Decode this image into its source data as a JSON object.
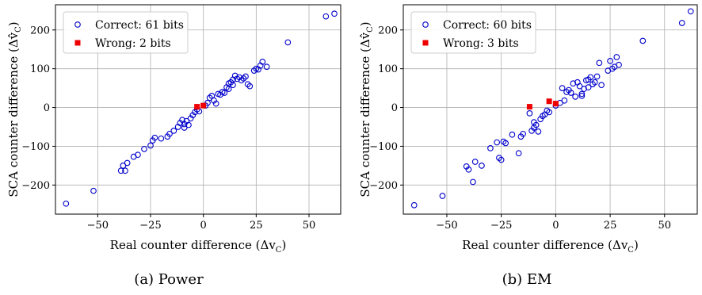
{
  "chart_data": [
    {
      "type": "scatter",
      "caption": "(a) Power",
      "xlabel": "Real counter difference (Δv",
      "xlabel_sub": "C",
      "xlabel_end": ")",
      "ylabel": "SCA counter difference (Δv̂",
      "ylabel_sub": "C",
      "ylabel_end": ")",
      "xlim": [
        -70,
        65
      ],
      "ylim": [
        -275,
        265
      ],
      "xticks": [
        -50,
        -25,
        0,
        25,
        50
      ],
      "xtick_labels": [
        "−50",
        "−25",
        "0",
        "25",
        "50"
      ],
      "yticks": [
        -200,
        -100,
        0,
        100,
        200
      ],
      "ytick_labels": [
        "−200",
        "−100",
        "0",
        "100",
        "200"
      ],
      "grid": true,
      "legend_position": "top-left",
      "series": [
        {
          "name": "Correct: 61 bits",
          "marker": "open-circle",
          "color": "#0000cc",
          "points": [
            [
              -65,
              -248
            ],
            [
              -52,
              -215
            ],
            [
              -39,
              -163
            ],
            [
              -38,
              -150
            ],
            [
              -37,
              -163
            ],
            [
              -36,
              -143
            ],
            [
              -33,
              -127
            ],
            [
              -31,
              -122
            ],
            [
              -28,
              -107
            ],
            [
              -25,
              -98
            ],
            [
              -24,
              -85
            ],
            [
              -23,
              -78
            ],
            [
              -17,
              -75
            ],
            [
              -16,
              -68
            ],
            [
              -14,
              -60
            ],
            [
              -12,
              -50
            ],
            [
              -11,
              -40
            ],
            [
              -10,
              -32
            ],
            [
              -9,
              -43
            ],
            [
              -9,
              -52
            ],
            [
              -8,
              -35
            ],
            [
              -7,
              -45
            ],
            [
              -6,
              -28
            ],
            [
              -5,
              -20
            ],
            [
              -4,
              -12
            ],
            [
              -2,
              -10
            ],
            [
              1,
              5
            ],
            [
              2,
              12
            ],
            [
              3,
              25
            ],
            [
              4,
              30
            ],
            [
              5,
              18
            ],
            [
              6,
              10
            ],
            [
              7,
              35
            ],
            [
              9,
              40
            ],
            [
              10,
              38
            ],
            [
              11,
              52
            ],
            [
              12,
              48
            ],
            [
              13,
              65
            ],
            [
              14,
              72
            ],
            [
              15,
              82
            ],
            [
              16,
              74
            ],
            [
              17,
              78
            ],
            [
              18,
              70
            ],
            [
              19,
              75
            ],
            [
              20,
              80
            ],
            [
              21,
              60
            ],
            [
              22,
              55
            ],
            [
              24,
              95
            ],
            [
              25,
              100
            ],
            [
              26,
              98
            ],
            [
              27,
              108
            ],
            [
              28,
              118
            ],
            [
              30,
              105
            ],
            [
              40,
              168
            ],
            [
              58,
              235
            ],
            [
              62,
              242
            ],
            [
              -20,
              -80
            ],
            [
              -3,
              -5
            ],
            [
              14,
              58
            ],
            [
              12,
              62
            ],
            [
              8,
              33
            ]
          ]
        },
        {
          "name": "Wrong: 2 bits",
          "marker": "filled-square",
          "color": "#ee0000",
          "points": [
            [
              -3,
              2
            ],
            [
              0,
              5
            ]
          ]
        }
      ]
    },
    {
      "type": "scatter",
      "caption": "(b) EM",
      "xlabel": "Real counter difference (Δv",
      "xlabel_sub": "C",
      "xlabel_end": ")",
      "ylabel": "SCA counter difference (Δv̂",
      "ylabel_sub": "C",
      "ylabel_end": ")",
      "xlim": [
        -70,
        65
      ],
      "ylim": [
        -275,
        265
      ],
      "xticks": [
        -50,
        -25,
        0,
        25,
        50
      ],
      "xtick_labels": [
        "−50",
        "−25",
        "0",
        "25",
        "50"
      ],
      "yticks": [
        -200,
        -100,
        0,
        100,
        200
      ],
      "ytick_labels": [
        "−200",
        "−100",
        "0",
        "100",
        "200"
      ],
      "grid": true,
      "legend_position": "top-left",
      "series": [
        {
          "name": "Correct: 60 bits",
          "marker": "open-circle",
          "color": "#0000cc",
          "points": [
            [
              -65,
              -252
            ],
            [
              -52,
              -228
            ],
            [
              -41,
              -152
            ],
            [
              -40,
              -160
            ],
            [
              -38,
              -192
            ],
            [
              -37,
              -140
            ],
            [
              -34,
              -150
            ],
            [
              -30,
              -105
            ],
            [
              -27,
              -90
            ],
            [
              -26,
              -130
            ],
            [
              -25,
              -135
            ],
            [
              -24,
              -88
            ],
            [
              -23,
              -92
            ],
            [
              -17,
              -118
            ],
            [
              -16,
              -75
            ],
            [
              -15,
              -68
            ],
            [
              -11,
              -60
            ],
            [
              -10,
              -52
            ],
            [
              -10,
              -38
            ],
            [
              -9,
              -45
            ],
            [
              -8,
              -62
            ],
            [
              -7,
              -30
            ],
            [
              -5,
              -18
            ],
            [
              -4,
              -8
            ],
            [
              -3,
              -12
            ],
            [
              0,
              5
            ],
            [
              2,
              12
            ],
            [
              3,
              50
            ],
            [
              5,
              40
            ],
            [
              6,
              45
            ],
            [
              8,
              62
            ],
            [
              10,
              65
            ],
            [
              11,
              55
            ],
            [
              12,
              35
            ],
            [
              13,
              48
            ],
            [
              14,
              70
            ],
            [
              15,
              52
            ],
            [
              16,
              78
            ],
            [
              17,
              60
            ],
            [
              18,
              65
            ],
            [
              19,
              80
            ],
            [
              20,
              115
            ],
            [
              24,
              95
            ],
            [
              25,
              120
            ],
            [
              27,
              105
            ],
            [
              28,
              130
            ],
            [
              29,
              110
            ],
            [
              40,
              172
            ],
            [
              58,
              218
            ],
            [
              62,
              248
            ],
            [
              -12,
              -15
            ],
            [
              4,
              18
            ],
            [
              9,
              28
            ],
            [
              -6,
              -22
            ],
            [
              26,
              100
            ],
            [
              21,
              58
            ],
            [
              15,
              72
            ],
            [
              12,
              30
            ],
            [
              -20,
              -70
            ],
            [
              7,
              38
            ]
          ]
        },
        {
          "name": "Wrong: 3 bits",
          "marker": "filled-square",
          "color": "#ee0000",
          "points": [
            [
              -12,
              2
            ],
            [
              -3,
              16
            ],
            [
              0,
              10
            ]
          ]
        }
      ]
    }
  ]
}
